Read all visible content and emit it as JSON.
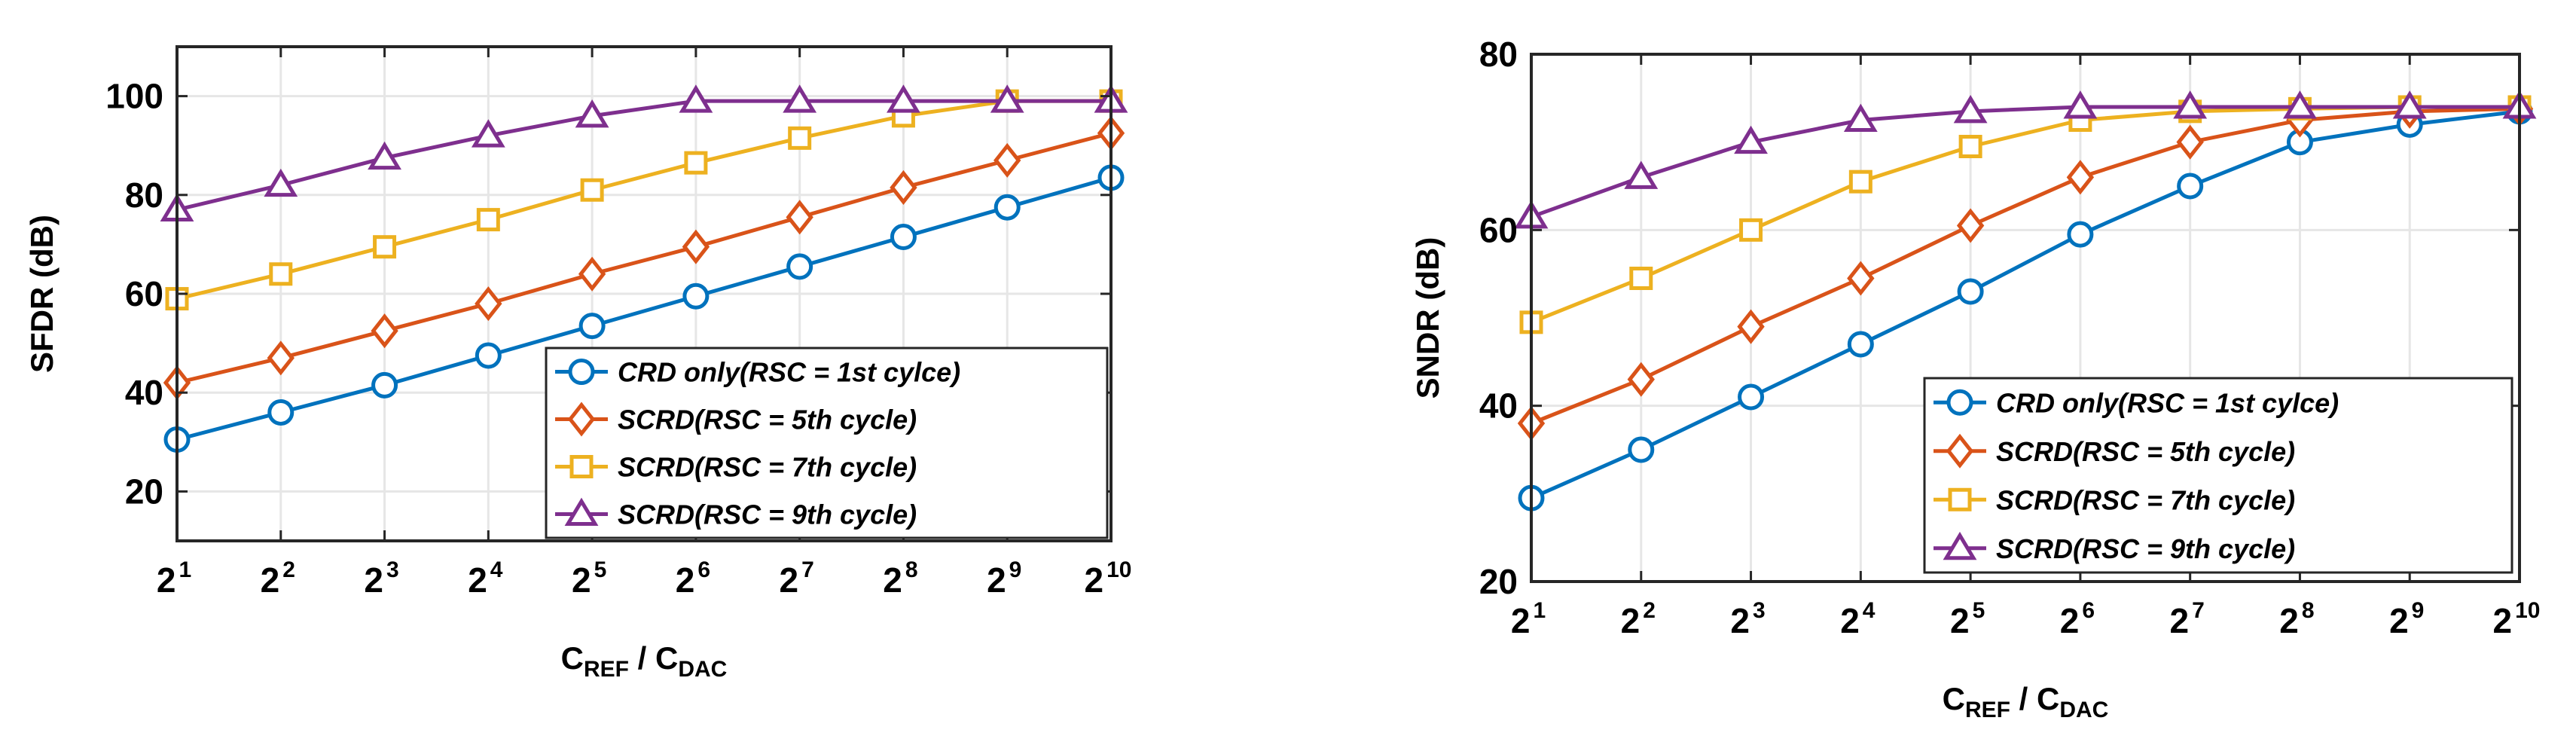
{
  "colors": {
    "series1": "#0072BD",
    "series2": "#D95319",
    "series3": "#EDB120",
    "series4": "#7E2F8E",
    "grid": "#e6e6e6",
    "axis": "#262626"
  },
  "chart_data": [
    {
      "type": "line",
      "xlabel": "C_REF / C_DAC",
      "xlabel_main": "C",
      "xlabel_sub1": "REF",
      "xlabel_mid": " / C",
      "xlabel_sub2": "DAC",
      "ylabel": "SFDR (dB)",
      "ylim": [
        10,
        110
      ],
      "yticks": [
        20,
        40,
        60,
        80,
        100
      ],
      "ytick_labels": [
        "20",
        "40",
        "60",
        "80",
        "100"
      ],
      "x": [
        1,
        2,
        3,
        4,
        5,
        6,
        7,
        8,
        9,
        10
      ],
      "xtick_base": "2",
      "xtick_exps": [
        "1",
        "2",
        "3",
        "4",
        "5",
        "6",
        "7",
        "8",
        "9",
        "10"
      ],
      "grid": true,
      "legend_position": "bottom-right",
      "series": [
        {
          "name": "CRD only(RSC = 1st cylce)",
          "marker": "circle",
          "values": [
            30.5,
            36,
            41.5,
            47.5,
            53.5,
            59.5,
            65.5,
            71.5,
            77.5,
            83.5
          ]
        },
        {
          "name": "SCRD(RSC = 5th cycle)",
          "marker": "diamond",
          "values": [
            42,
            47,
            52.5,
            58,
            64,
            69.5,
            75.5,
            81.5,
            87,
            92.5
          ]
        },
        {
          "name": "SCRD(RSC = 7th cycle)",
          "marker": "square",
          "values": [
            59,
            64,
            69.5,
            75,
            81,
            86.5,
            91.5,
            96,
            99,
            99
          ]
        },
        {
          "name": "SCRD(RSC = 9th cycle)",
          "marker": "triangle",
          "values": [
            77,
            82,
            87.5,
            92,
            96,
            99,
            99,
            99,
            99,
            99
          ]
        }
      ]
    },
    {
      "type": "line",
      "xlabel": "C_REF / C_DAC",
      "xlabel_main": "C",
      "xlabel_sub1": "REF",
      "xlabel_mid": " / C",
      "xlabel_sub2": "DAC",
      "ylabel": "SNDR (dB)",
      "ylim": [
        20,
        80
      ],
      "yticks": [
        20,
        40,
        60,
        80
      ],
      "ytick_labels": [
        "20",
        "40",
        "60",
        "80"
      ],
      "x": [
        1,
        2,
        3,
        4,
        5,
        6,
        7,
        8,
        9,
        10
      ],
      "xtick_base": "2",
      "xtick_exps": [
        "1",
        "2",
        "3",
        "4",
        "5",
        "6",
        "7",
        "8",
        "9",
        "10"
      ],
      "grid": true,
      "legend_position": "bottom-right",
      "series": [
        {
          "name": "CRD only(RSC = 1st cylce)",
          "marker": "circle",
          "values": [
            29.5,
            35,
            41,
            47,
            53,
            59.5,
            65,
            70,
            72,
            73.5
          ]
        },
        {
          "name": "SCRD(RSC = 5th cycle)",
          "marker": "diamond",
          "values": [
            38,
            43,
            49,
            54.5,
            60.5,
            66,
            70,
            72.5,
            73.5,
            73.8
          ]
        },
        {
          "name": "SCRD(RSC = 7th cycle)",
          "marker": "square",
          "values": [
            49.5,
            54.5,
            60,
            65.5,
            69.5,
            72.5,
            73.5,
            73.8,
            74,
            74
          ]
        },
        {
          "name": "SCRD(RSC = 9th cycle)",
          "marker": "triangle",
          "values": [
            61.5,
            66,
            70,
            72.5,
            73.5,
            74,
            74,
            74,
            74,
            74
          ]
        }
      ]
    }
  ]
}
